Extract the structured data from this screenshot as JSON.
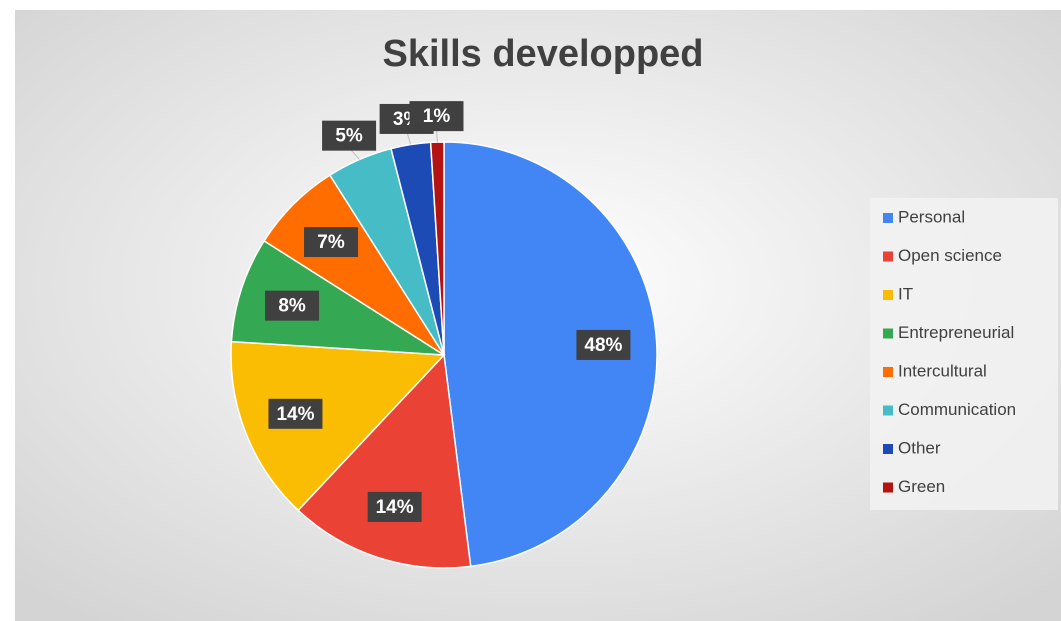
{
  "chart_data": {
    "type": "pie",
    "title": "Skills developped",
    "categories": [
      "Personal",
      "Open science",
      "IT",
      "Entrepreneurial",
      "Intercultural",
      "Communication",
      "Other",
      "Green"
    ],
    "values": [
      48,
      14,
      14,
      8,
      7,
      5,
      3,
      1
    ],
    "value_labels": [
      "48%",
      "14%",
      "14%",
      "8%",
      "7%",
      "5%",
      "3%",
      "1%"
    ],
    "colors": [
      "#4285f4",
      "#ea4335",
      "#fbbc04",
      "#34a853",
      "#ff6d01",
      "#46bdc6",
      "#1c4bb5",
      "#b31412"
    ],
    "legend": "right"
  }
}
